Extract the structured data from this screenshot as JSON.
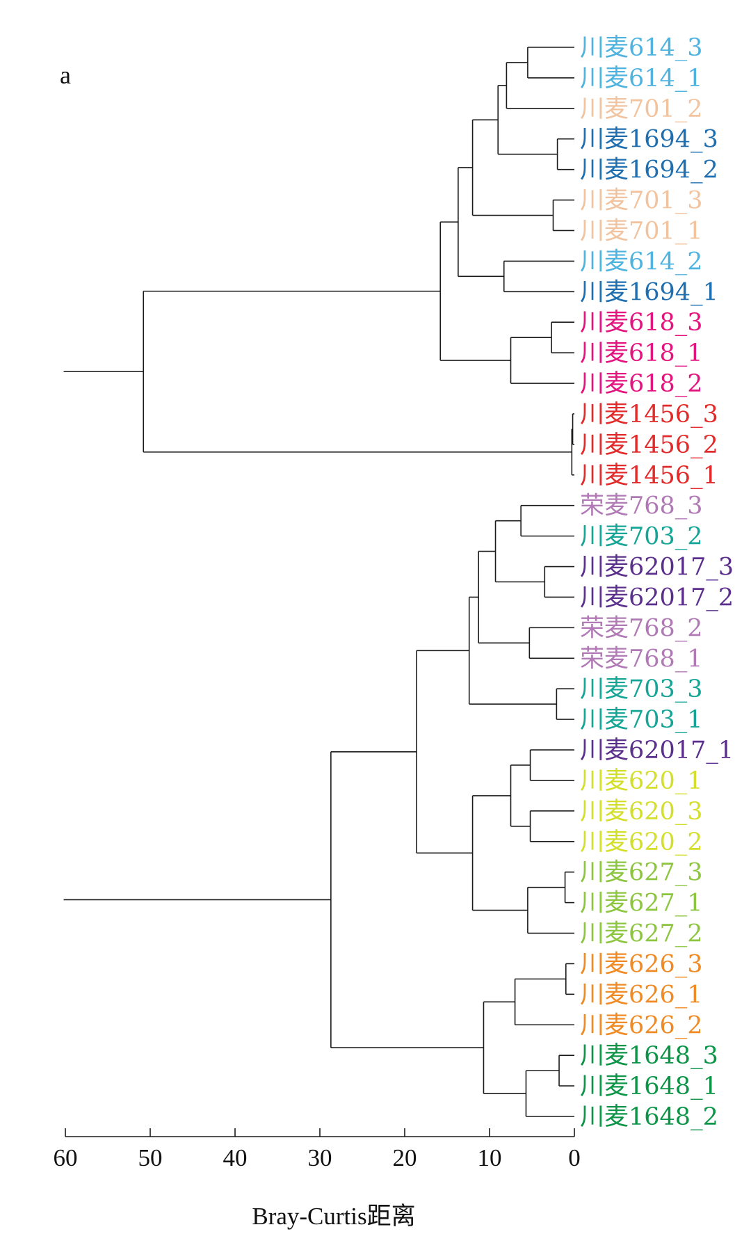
{
  "chart_data": {
    "type": "dendrogram",
    "panel_label": "a",
    "xlabel": "Bray-Curtis距离",
    "xlim": [
      60,
      0
    ],
    "xticks": [
      60,
      50,
      40,
      30,
      20,
      10,
      0
    ],
    "leaves": [
      {
        "label": "川麦614_3",
        "color": "#4fb3e0"
      },
      {
        "label": "川麦614_1",
        "color": "#4fb3e0"
      },
      {
        "label": "川麦701_2",
        "color": "#f2c39f"
      },
      {
        "label": "川麦1694_3",
        "color": "#1f6fb0"
      },
      {
        "label": "川麦1694_2",
        "color": "#1f6fb0"
      },
      {
        "label": "川麦701_3",
        "color": "#f2c39f"
      },
      {
        "label": "川麦701_1",
        "color": "#f2c39f"
      },
      {
        "label": "川麦614_2",
        "color": "#4fb3e0"
      },
      {
        "label": "川麦1694_1",
        "color": "#1f6fb0"
      },
      {
        "label": "川麦618_3",
        "color": "#e4137f"
      },
      {
        "label": "川麦618_1",
        "color": "#e4137f"
      },
      {
        "label": "川麦618_2",
        "color": "#e4137f"
      },
      {
        "label": "川麦1456_3",
        "color": "#e32a2a"
      },
      {
        "label": "川麦1456_2",
        "color": "#e32a2a"
      },
      {
        "label": "川麦1456_1",
        "color": "#e32a2a"
      },
      {
        "label": "荣麦768_3",
        "color": "#b17ab6"
      },
      {
        "label": "川麦703_2",
        "color": "#14a596"
      },
      {
        "label": "川麦62017_3",
        "color": "#5b2f8c"
      },
      {
        "label": "川麦62017_2",
        "color": "#5b2f8c"
      },
      {
        "label": "荣麦768_2",
        "color": "#b17ab6"
      },
      {
        "label": "荣麦768_1",
        "color": "#b17ab6"
      },
      {
        "label": "川麦703_3",
        "color": "#14a596"
      },
      {
        "label": "川麦703_1",
        "color": "#14a596"
      },
      {
        "label": "川麦62017_1",
        "color": "#5b2f8c"
      },
      {
        "label": "川麦620_1",
        "color": "#d3df2a"
      },
      {
        "label": "川麦620_3",
        "color": "#d3df2a"
      },
      {
        "label": "川麦620_2",
        "color": "#d3df2a"
      },
      {
        "label": "川麦627_3",
        "color": "#8cc63f"
      },
      {
        "label": "川麦627_1",
        "color": "#8cc63f"
      },
      {
        "label": "川麦627_2",
        "color": "#8cc63f"
      },
      {
        "label": "川麦626_3",
        "color": "#f08a24"
      },
      {
        "label": "川麦626_1",
        "color": "#f08a24"
      },
      {
        "label": "川麦626_2",
        "color": "#f08a24"
      },
      {
        "label": "川麦1648_3",
        "color": "#0c9447"
      },
      {
        "label": "川麦1648_1",
        "color": "#0c9447"
      },
      {
        "label": "川麦1648_2",
        "color": "#0c9447"
      }
    ],
    "merges": [
      {
        "id": "n1",
        "children": [
          "川麦614_3",
          "川麦614_1"
        ],
        "height": 5.5
      },
      {
        "id": "n2",
        "children": [
          "n1",
          "川麦701_2"
        ],
        "height": 8.0
      },
      {
        "id": "n3",
        "children": [
          "川麦1694_3",
          "川麦1694_2"
        ],
        "height": 2.0
      },
      {
        "id": "n4",
        "children": [
          "n2",
          "n3"
        ],
        "height": 9.0
      },
      {
        "id": "n5",
        "children": [
          "川麦701_3",
          "川麦701_1"
        ],
        "height": 2.5
      },
      {
        "id": "n6",
        "children": [
          "n4",
          "n5"
        ],
        "height": 12.0
      },
      {
        "id": "n7",
        "children": [
          "川麦614_2",
          "川麦1694_1"
        ],
        "height": 8.3
      },
      {
        "id": "n8",
        "children": [
          "n6",
          "n7"
        ],
        "height": 13.7
      },
      {
        "id": "n9",
        "children": [
          "川麦618_3",
          "川麦618_1"
        ],
        "height": 2.7
      },
      {
        "id": "n10",
        "children": [
          "n9",
          "川麦618_2"
        ],
        "height": 7.5
      },
      {
        "id": "n11",
        "children": [
          "n8",
          "n10"
        ],
        "height": 15.8
      },
      {
        "id": "n12",
        "children": [
          "川麦1456_3",
          "川麦1456_2"
        ],
        "height": 0.2
      },
      {
        "id": "n13",
        "children": [
          "n12",
          "川麦1456_1"
        ],
        "height": 0.3
      },
      {
        "id": "n14",
        "children": [
          "n11",
          "n13"
        ],
        "height": 50.8
      },
      {
        "id": "n15",
        "children": [
          "荣麦768_3",
          "川麦703_2"
        ],
        "height": 6.3
      },
      {
        "id": "n16",
        "children": [
          "川麦62017_3",
          "川麦62017_2"
        ],
        "height": 3.5
      },
      {
        "id": "n17",
        "children": [
          "n15",
          "n16"
        ],
        "height": 9.3
      },
      {
        "id": "n18",
        "children": [
          "荣麦768_2",
          "荣麦768_1"
        ],
        "height": 5.3
      },
      {
        "id": "n19",
        "children": [
          "n17",
          "n18"
        ],
        "height": 11.3
      },
      {
        "id": "n20",
        "children": [
          "川麦703_3",
          "川麦703_1"
        ],
        "height": 2.1
      },
      {
        "id": "n21",
        "children": [
          "n19",
          "n20"
        ],
        "height": 12.4
      },
      {
        "id": "n22",
        "children": [
          "川麦62017_1",
          "川麦620_1"
        ],
        "height": 5.2
      },
      {
        "id": "n23",
        "children": [
          "川麦620_3",
          "川麦620_2"
        ],
        "height": 5.2
      },
      {
        "id": "n24",
        "children": [
          "n22",
          "n23"
        ],
        "height": 7.5
      },
      {
        "id": "n25",
        "children": [
          "川麦627_3",
          "川麦627_1"
        ],
        "height": 1.1
      },
      {
        "id": "n26",
        "children": [
          "n25",
          "川麦627_2"
        ],
        "height": 5.5
      },
      {
        "id": "n27",
        "children": [
          "n24",
          "n26"
        ],
        "height": 12.0
      },
      {
        "id": "n28",
        "children": [
          "n21",
          "n27"
        ],
        "height": 18.6
      },
      {
        "id": "n29",
        "children": [
          "川麦626_3",
          "川麦626_1"
        ],
        "height": 1.0
      },
      {
        "id": "n30",
        "children": [
          "n29",
          "川麦626_2"
        ],
        "height": 7.0
      },
      {
        "id": "n31",
        "children": [
          "川麦1648_3",
          "川麦1648_1"
        ],
        "height": 1.8
      },
      {
        "id": "n32",
        "children": [
          "n31",
          "川麦1648_2"
        ],
        "height": 5.7
      },
      {
        "id": "n33",
        "children": [
          "n30",
          "n32"
        ],
        "height": 10.7
      },
      {
        "id": "n34",
        "children": [
          "n28",
          "n33"
        ],
        "height": 28.7
      }
    ],
    "roots": [
      "n14",
      "n34"
    ],
    "root_stem_to": 60.2
  }
}
